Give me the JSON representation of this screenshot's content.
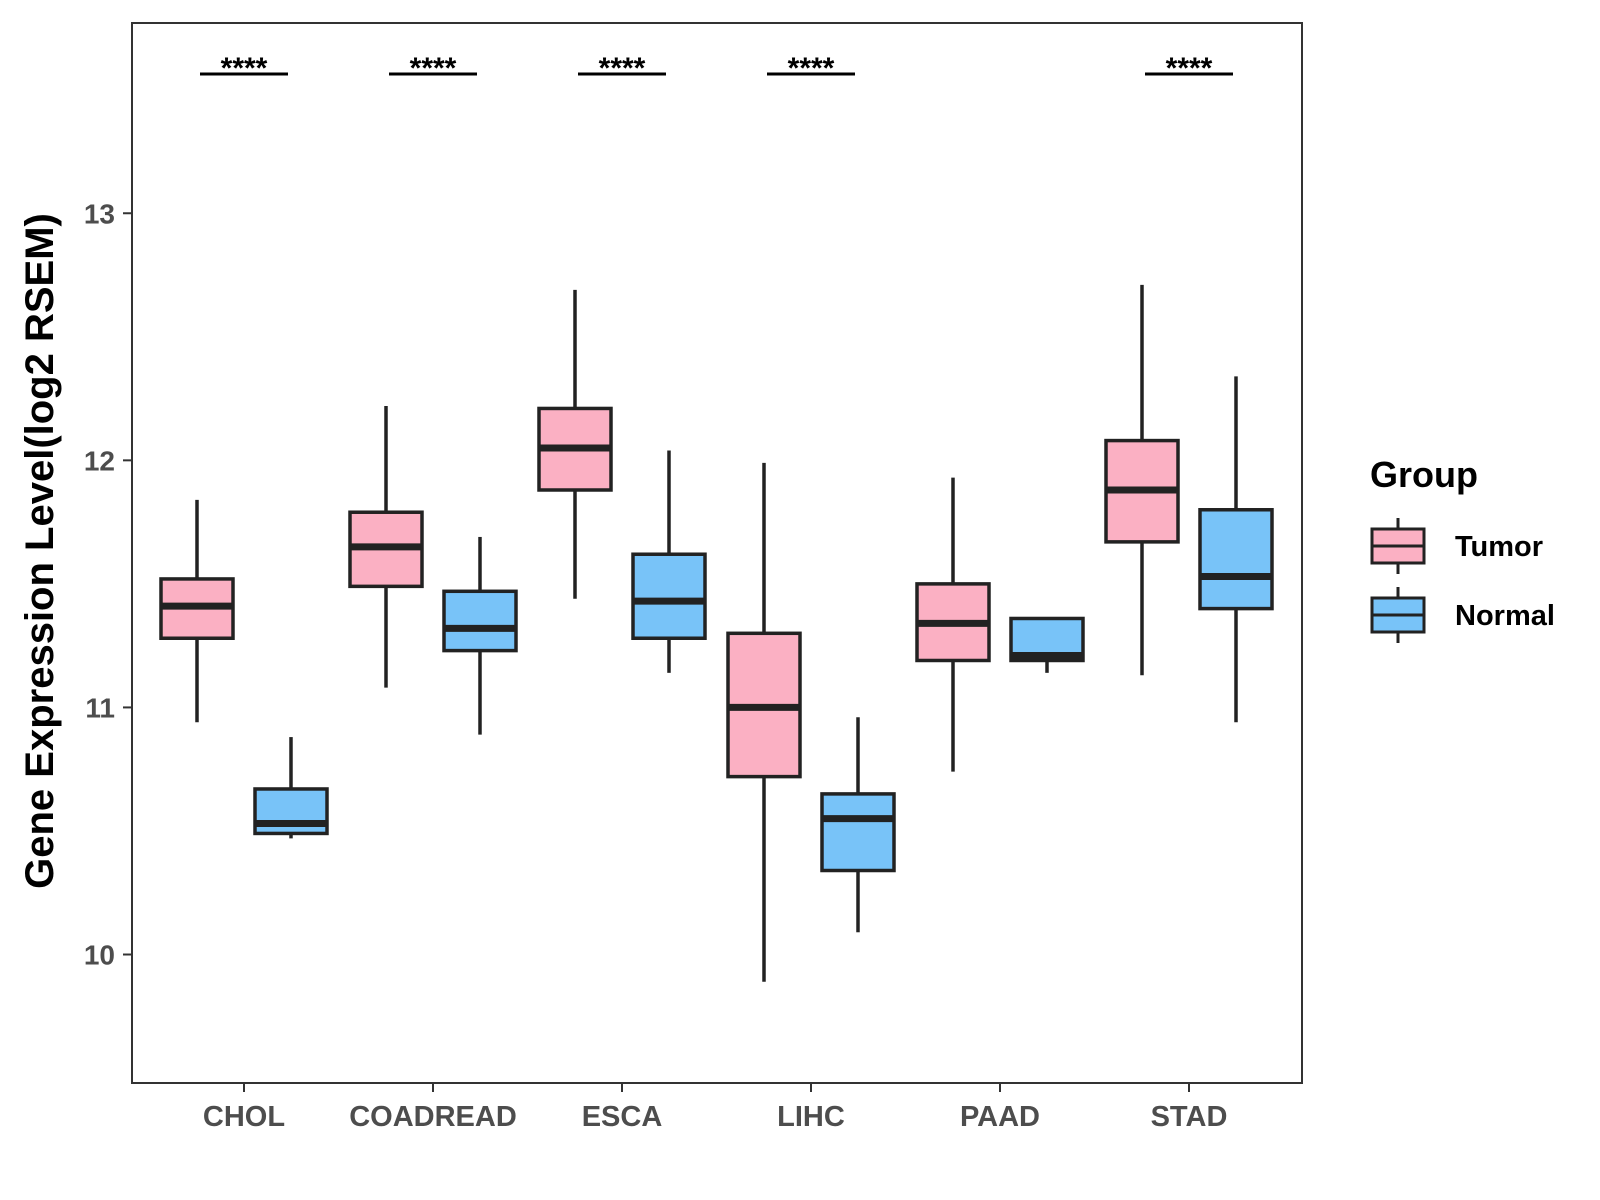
{
  "chart_data": {
    "type": "boxplot",
    "title": "",
    "xlabel": "",
    "ylabel": "Gene Expression Level(log2 RSEM)",
    "ylim": [
      9.48,
      13.77
    ],
    "yticks": [
      10,
      11,
      12,
      13
    ],
    "grid": false,
    "legend_position": "right",
    "categories": [
      "CHOL",
      "COADREAD",
      "ESCA",
      "LIHC",
      "PAAD",
      "STAD"
    ],
    "legend": {
      "title": "Group",
      "entries": [
        {
          "name": "Tumor",
          "color": "#FBB0C3"
        },
        {
          "name": "Normal",
          "color": "#78C3F8"
        }
      ]
    },
    "series": [
      {
        "name": "Tumor",
        "color": "#FBB0C3",
        "boxes": [
          {
            "category": "CHOL",
            "min": 10.94,
            "q1": 11.28,
            "median": 11.41,
            "q3": 11.52,
            "max": 11.84
          },
          {
            "category": "COADREAD",
            "min": 11.08,
            "q1": 11.49,
            "median": 11.65,
            "q3": 11.79,
            "max": 12.22
          },
          {
            "category": "ESCA",
            "min": 11.44,
            "q1": 11.88,
            "median": 12.05,
            "q3": 12.21,
            "max": 12.69
          },
          {
            "category": "LIHC",
            "min": 9.89,
            "q1": 10.72,
            "median": 11.0,
            "q3": 11.3,
            "max": 11.99
          },
          {
            "category": "PAAD",
            "min": 10.74,
            "q1": 11.19,
            "median": 11.34,
            "q3": 11.5,
            "max": 11.93
          },
          {
            "category": "STAD",
            "min": 11.13,
            "q1": 11.67,
            "median": 11.88,
            "q3": 12.08,
            "max": 12.71
          }
        ]
      },
      {
        "name": "Normal",
        "color": "#78C3F8",
        "boxes": [
          {
            "category": "CHOL",
            "min": 10.47,
            "q1": 10.49,
            "median": 10.53,
            "q3": 10.67,
            "max": 10.88
          },
          {
            "category": "COADREAD",
            "min": 10.89,
            "q1": 11.23,
            "median": 11.32,
            "q3": 11.47,
            "max": 11.69
          },
          {
            "category": "ESCA",
            "min": 11.14,
            "q1": 11.28,
            "median": 11.43,
            "q3": 11.62,
            "max": 12.04
          },
          {
            "category": "LIHC",
            "min": 10.09,
            "q1": 10.34,
            "median": 10.55,
            "q3": 10.65,
            "max": 10.96
          },
          {
            "category": "PAAD",
            "min": 11.14,
            "q1": 11.19,
            "median": 11.21,
            "q3": 11.36,
            "max": 11.36
          },
          {
            "category": "STAD",
            "min": 10.94,
            "q1": 11.4,
            "median": 11.53,
            "q3": 11.8,
            "max": 12.34
          }
        ]
      }
    ],
    "significance": [
      {
        "category": "CHOL",
        "label": "****"
      },
      {
        "category": "COADREAD",
        "label": "****"
      },
      {
        "category": "ESCA",
        "label": "****"
      },
      {
        "category": "LIHC",
        "label": "****"
      },
      {
        "category": "PAAD",
        "label": ""
      },
      {
        "category": "STAD",
        "label": "****"
      }
    ]
  }
}
